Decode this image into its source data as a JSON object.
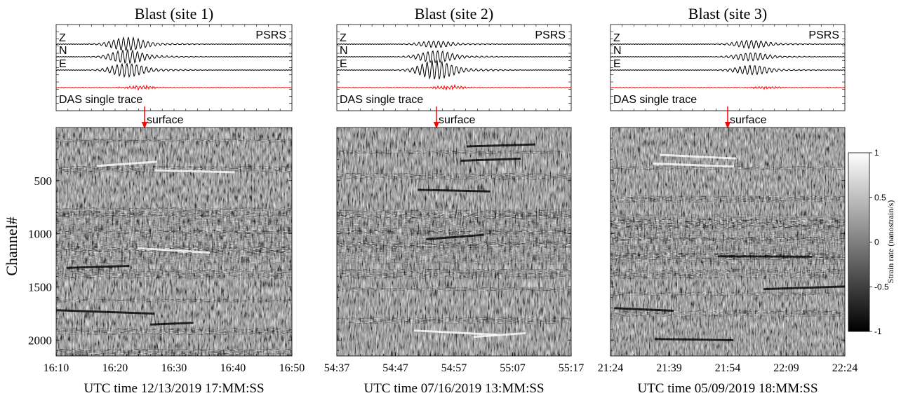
{
  "chart_data": [
    {
      "type": "heatmap",
      "title": "Blast (site 1)",
      "station": "PSRS",
      "components": [
        "Z",
        "N",
        "E"
      ],
      "das_label": "DAS single trace",
      "arrow_label": "surface",
      "ylabel": "Channel#",
      "xlabel": "UTC time 12/13/2019 17:MM:SS",
      "xticks": [
        "16:10",
        "16:20",
        "16:30",
        "16:40",
        "16:50"
      ],
      "yticks": [
        500,
        1000,
        1500,
        2000
      ],
      "ylim": [
        2150,
        0
      ],
      "arrow_x": "16:25",
      "wave_burst": 0.3,
      "wave_amp": [
        1.0,
        1.0,
        1.0
      ],
      "das_amp": 0.5,
      "band_rows": [
        0.05,
        0.17,
        0.35,
        0.45,
        0.52,
        0.62,
        0.75,
        0.88,
        0.97
      ]
    },
    {
      "type": "heatmap",
      "title": "Blast (site 2)",
      "station": "PSRS",
      "components": [
        "Z",
        "N",
        "E"
      ],
      "das_label": "DAS single trace",
      "arrow_label": "surface",
      "ylabel": "",
      "xlabel": "UTC time 07/16/2019 13:MM:SS",
      "xticks": [
        "54:37",
        "54:47",
        "54:57",
        "55:07",
        "55:17"
      ],
      "yticks": [
        500,
        1000,
        1500,
        2000
      ],
      "ylim": [
        2150,
        0
      ],
      "arrow_x": "54:54",
      "wave_burst": 0.42,
      "wave_amp": [
        0.5,
        0.9,
        1.4
      ],
      "das_amp": 0.6,
      "band_rows": [
        0.1,
        0.2,
        0.36,
        0.45,
        0.5,
        0.62,
        0.7,
        0.83
      ]
    },
    {
      "type": "heatmap",
      "title": "Blast (site 3)",
      "station": "PSRS",
      "components": [
        "Z",
        "N",
        "E"
      ],
      "das_label": "DAS single trace",
      "arrow_label": "surface",
      "ylabel": "",
      "xlabel": "UTC time 05/09/2019 18:MM:SS",
      "xticks": [
        "21:24",
        "21:39",
        "21:54",
        "22:09",
        "22:24"
      ],
      "yticks": [
        500,
        1000,
        1500,
        2000
      ],
      "ylim": [
        2150,
        0
      ],
      "arrow_x": "21:54",
      "wave_burst": 0.6,
      "wave_amp": [
        0.6,
        0.6,
        0.7
      ],
      "das_amp": 0.3,
      "band_rows": [
        0.17,
        0.3,
        0.4,
        0.48,
        0.55,
        0.62,
        0.72,
        0.8
      ]
    }
  ],
  "colorbar": {
    "label": "Strain rate (nanostrain/s)",
    "ticks": [
      "1",
      "0.5",
      "0",
      "-0.5",
      "-1"
    ],
    "range": [
      -1,
      1
    ],
    "colors": [
      "#000000",
      "#ffffff"
    ]
  },
  "colors": {
    "das_trace": "#ff0000",
    "arrow": "#ff0000",
    "seismo_trace": "#000000"
  }
}
